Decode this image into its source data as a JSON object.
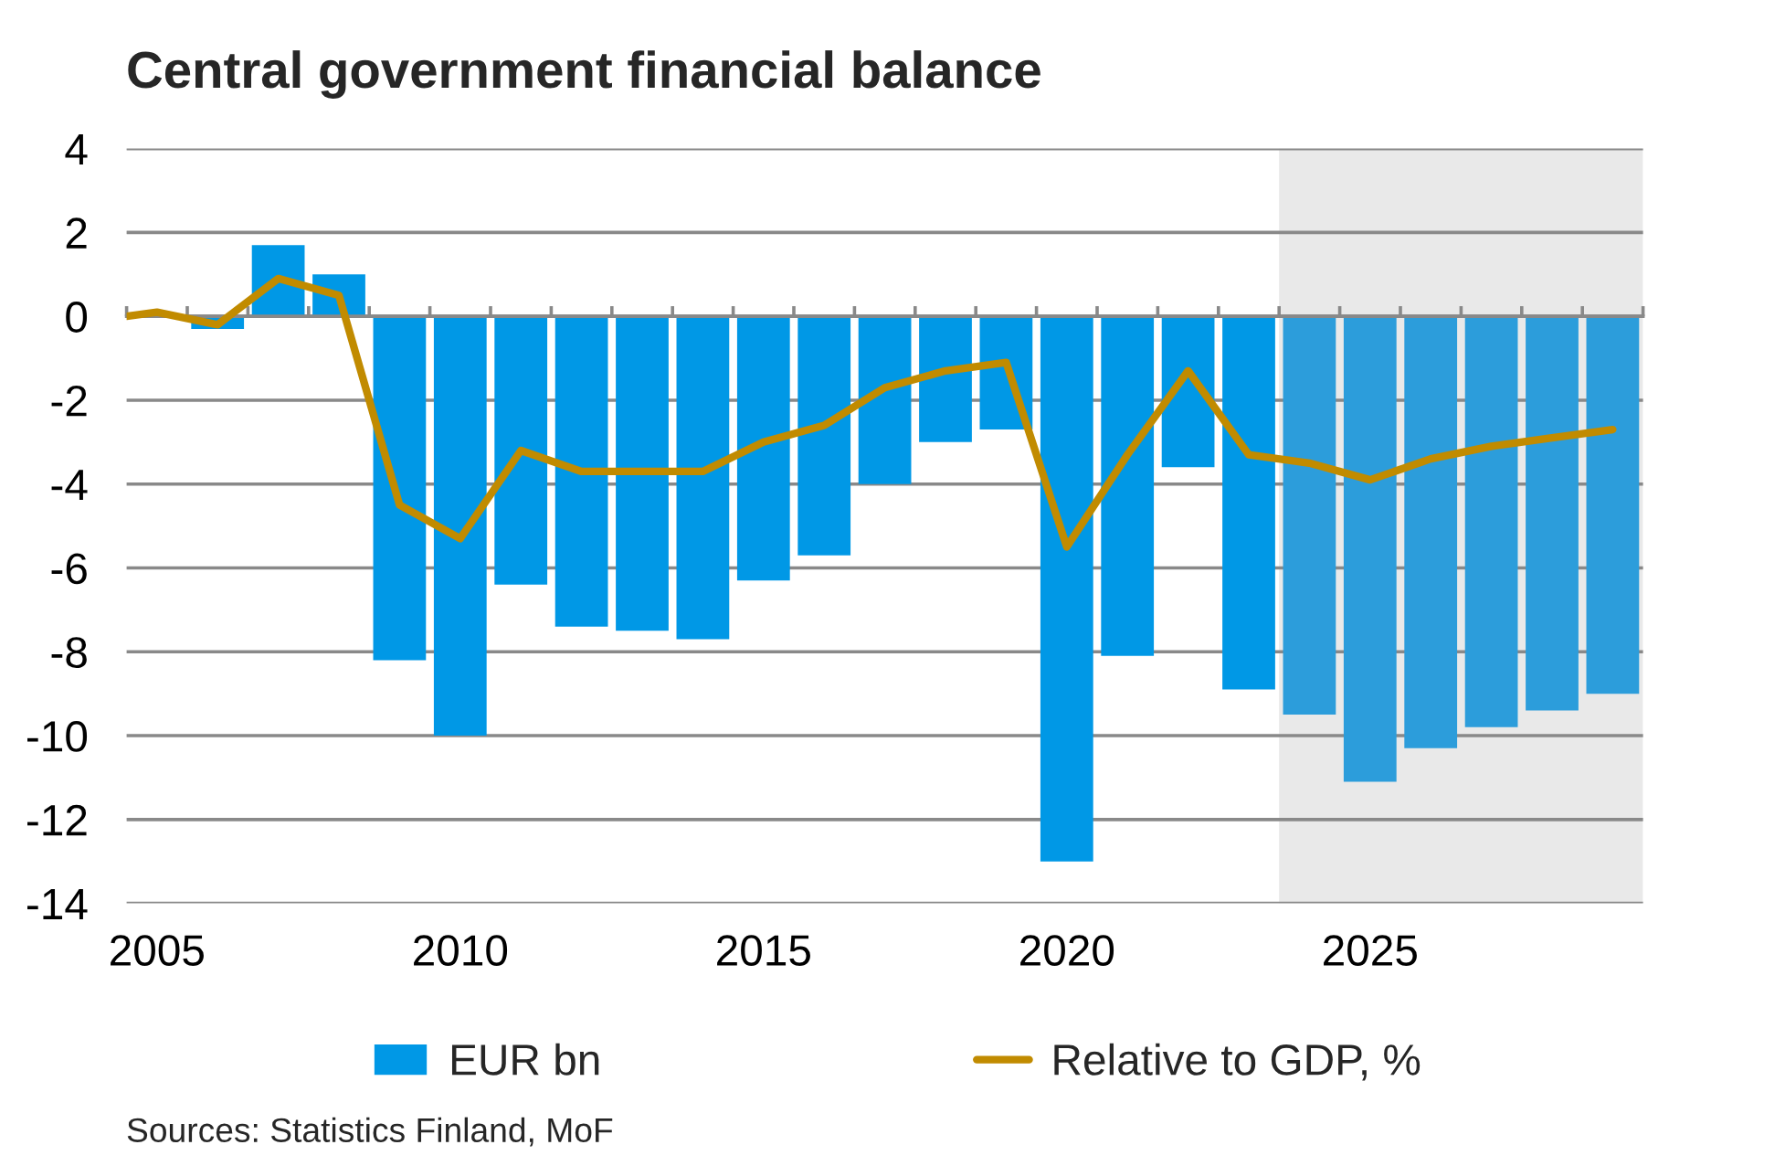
{
  "chart_data": {
    "type": "bar",
    "title": "Central government financial balance",
    "series": [
      {
        "name": "EUR bn",
        "color": "#0098e6",
        "x": [
          2006,
          2007,
          2008,
          2009,
          2010,
          2011,
          2012,
          2013,
          2014,
          2015,
          2016,
          2017,
          2018,
          2019,
          2020,
          2021,
          2022,
          2023,
          2024,
          2025,
          2026,
          2027,
          2028,
          2029
        ],
        "colors": [
          "#0098e6",
          "#0098e6",
          "#0098e6",
          "#0098e6",
          "#0098e6",
          "#0098e6",
          "#0098e6",
          "#0098e6",
          "#0098e6",
          "#0098e6",
          "#0098e6",
          "#0098e6",
          "#0098e6",
          "#0098e6",
          "#0098e6",
          "#0098e6",
          "#0098e6",
          "#0098e6",
          "#2c9ddb",
          "#2c9ddb",
          "#2c9ddb",
          "#2c9ddb",
          "#2c9ddb",
          "#2c9ddb"
        ],
        "values": [
          -0.3,
          1.7,
          1.0,
          -8.2,
          -10.0,
          -6.4,
          -7.4,
          -7.5,
          -7.7,
          -6.3,
          -5.7,
          -4.0,
          -3.0,
          -2.7,
          -13.0,
          -8.1,
          -3.6,
          -8.9,
          -9.5,
          -11.1,
          -10.3,
          -9.8,
          -9.4,
          -9.0
        ]
      },
      {
        "name": "Relative to GDP, %",
        "type": "line",
        "color": "#c18b00",
        "x": [
          2004.5,
          2005,
          2006,
          2007,
          2008,
          2009,
          2010,
          2011,
          2012,
          2013,
          2014,
          2015,
          2016,
          2017,
          2018,
          2019,
          2020,
          2021,
          2022,
          2023,
          2024,
          2025,
          2026,
          2027,
          2028,
          2029
        ],
        "values": [
          0.0,
          0.1,
          -0.2,
          0.9,
          0.5,
          -4.5,
          -5.3,
          -3.2,
          -3.7,
          -3.7,
          -3.7,
          -3.0,
          -2.6,
          -1.7,
          -1.3,
          -1.1,
          -5.5,
          -3.3,
          -1.3,
          -3.3,
          -3.5,
          -3.9,
          -3.4,
          -3.1,
          -2.9,
          -2.7
        ]
      }
    ],
    "xlim": [
      2004.5,
      2029.5
    ],
    "xticks": [
      {
        "value": 2004.5,
        "label": null
      },
      2005,
      {
        "value": 2005.5,
        "label": null
      },
      {
        "value": 2006.5,
        "label": null
      },
      {
        "value": 2007.5,
        "label": null
      },
      {
        "value": 2008.5,
        "label": null
      },
      {
        "value": 2009.5,
        "label": null
      },
      2010,
      {
        "value": 2010.5,
        "label": null
      },
      {
        "value": 2011.5,
        "label": null
      },
      {
        "value": 2012.5,
        "label": null
      },
      {
        "value": 2013.5,
        "label": null
      },
      {
        "value": 2014.5,
        "label": null
      },
      2015,
      {
        "value": 2015.5,
        "label": null
      },
      {
        "value": 2016.5,
        "label": null
      },
      {
        "value": 2017.5,
        "label": null
      },
      {
        "value": 2018.5,
        "label": null
      },
      {
        "value": 2019.5,
        "label": null
      },
      2020,
      {
        "value": 2020.5,
        "label": null
      },
      {
        "value": 2021.5,
        "label": null
      },
      {
        "value": 2022.5,
        "label": null
      },
      {
        "value": 2023.5,
        "label": null
      },
      {
        "value": 2024.5,
        "label": null
      },
      2025,
      {
        "value": 2025.5,
        "label": null
      },
      {
        "value": 2026.5,
        "label": null
      },
      {
        "value": 2027.5,
        "label": null
      },
      {
        "value": 2028.5,
        "label": null
      },
      {
        "value": 2029.5,
        "label": null
      }
    ],
    "ylim": [
      -14,
      4
    ],
    "yticks": [
      -14,
      -12,
      -10,
      -8,
      -6,
      -4,
      -2,
      0,
      2,
      4
    ],
    "grid": "y",
    "legend": "bottom",
    "bands": [
      {
        "axis": "x",
        "from": 2023.5,
        "to": 2029.5,
        "color": "#e9e9e9"
      }
    ],
    "annotations": [
      "Sources: Statistics Finland, MoF"
    ]
  }
}
